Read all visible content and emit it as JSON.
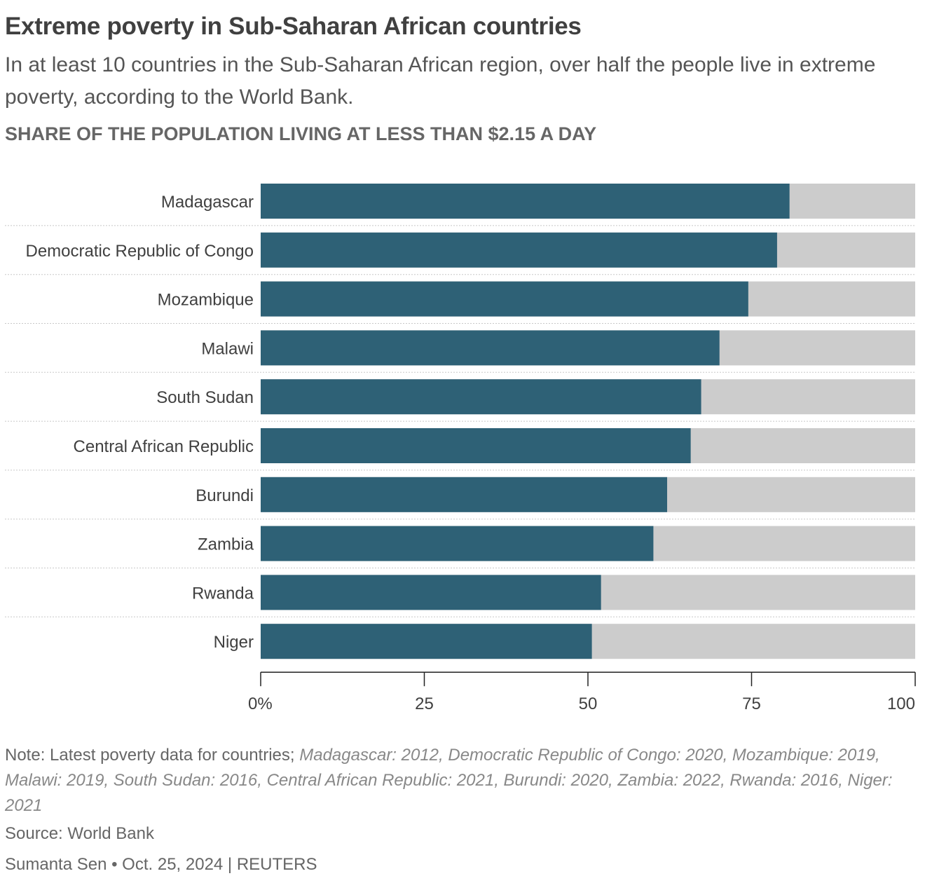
{
  "header": {
    "title": "Extreme poverty in Sub-Saharan African countries",
    "subtitle": "In at least 10 countries in the Sub-Saharan African region, over half the people live in extreme poverty, according to the World Bank.",
    "chart_label": "SHARE OF THE POPULATION LIVING AT LESS THAN $2.15 A DAY"
  },
  "colors": {
    "bar": "#2e6176",
    "remainder": "#cccccc",
    "separator": "#c8c8c8",
    "axis": "#222222",
    "text": "#404040"
  },
  "chart_data": {
    "type": "bar",
    "orientation": "horizontal",
    "stacked_to": 100,
    "categories": [
      "Madagascar",
      "Democratic Republic of Congo",
      "Mozambique",
      "Malawi",
      "South Sudan",
      "Central African Republic",
      "Burundi",
      "Zambia",
      "Rwanda",
      "Niger"
    ],
    "values": [
      80.8,
      78.9,
      74.5,
      70.1,
      67.3,
      65.7,
      62.1,
      60.0,
      52.0,
      50.6
    ],
    "xlim": [
      0,
      100
    ],
    "xticks": [
      0,
      25,
      50,
      75,
      100
    ],
    "xtick_labels": [
      "0%",
      "25",
      "50",
      "75",
      "100"
    ],
    "grid": false
  },
  "footer": {
    "note_lead": "Note: Latest poverty data for countries;",
    "note_body": "Madagascar: 2012, Democratic Republic of Congo: 2020, Mozambique: 2019, Malawi: 2019, South Sudan: 2016, Central African Republic: 2021, Burundi: 2020, Zambia: 2022, Rwanda: 2016, Niger: 2021",
    "source": "Source: World Bank",
    "byline": "Sumanta Sen • Oct. 25, 2024 | REUTERS"
  }
}
